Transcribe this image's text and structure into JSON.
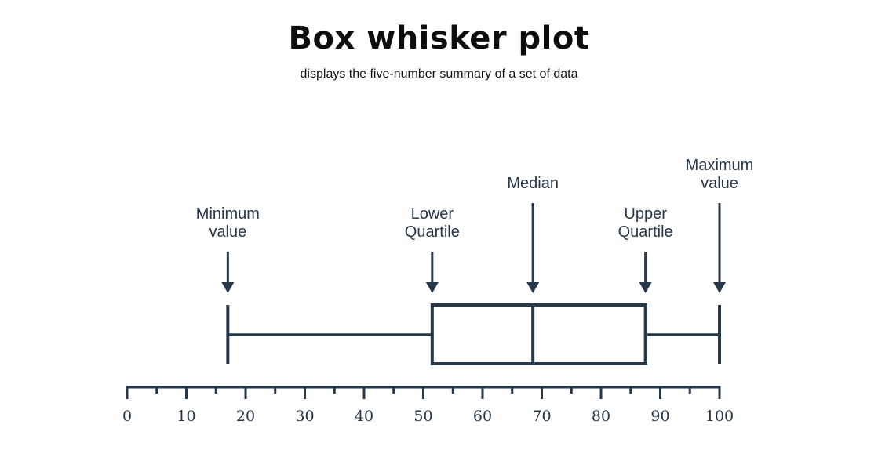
{
  "title": "Box whisker plot",
  "subtitle": "displays the five-number summary of a set of data",
  "colors": {
    "ink": "#27384b",
    "title": "#0d0d0d",
    "background": "#ffffff"
  },
  "chart_data": {
    "type": "box",
    "xlim": [
      0,
      100
    ],
    "major_ticks": [
      0,
      10,
      20,
      30,
      40,
      50,
      60,
      70,
      80,
      90,
      100
    ],
    "minor_ticks": [
      5,
      15,
      25,
      35,
      45,
      55,
      65,
      75,
      85,
      95
    ],
    "tick_labels": [
      "0",
      "10",
      "20",
      "30",
      "40",
      "50",
      "60",
      "70",
      "80",
      "90",
      "100"
    ],
    "summary": {
      "minimum": 17,
      "lower_quartile": 51.5,
      "median": 68.5,
      "upper_quartile": 87.5,
      "maximum": 100
    },
    "annotations": [
      {
        "key": "minimum",
        "lines": [
          "Minimum",
          "value"
        ]
      },
      {
        "key": "lower_quartile",
        "lines": [
          "Lower",
          "Quartile"
        ]
      },
      {
        "key": "median",
        "lines": [
          "Median"
        ]
      },
      {
        "key": "upper_quartile",
        "lines": [
          "Upper",
          "Quartile"
        ]
      },
      {
        "key": "maximum",
        "lines": [
          "Maximum",
          "value"
        ]
      }
    ]
  }
}
